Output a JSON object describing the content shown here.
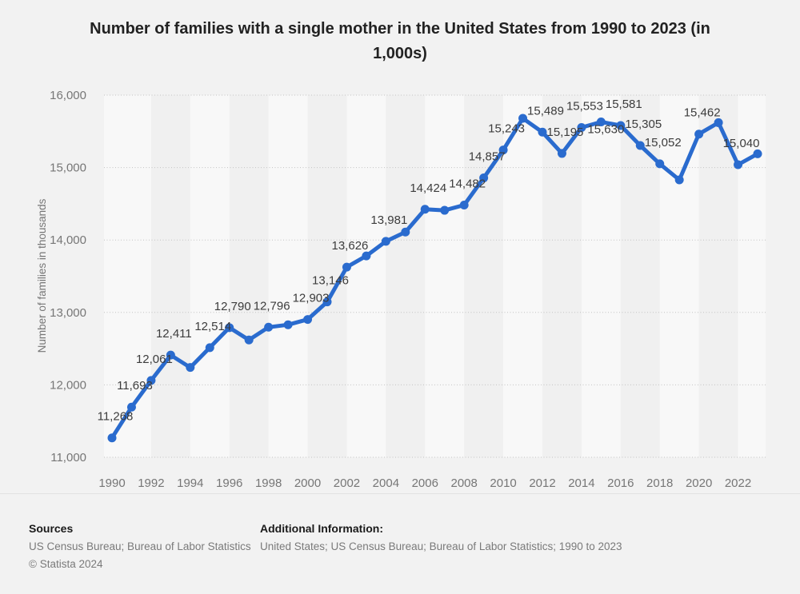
{
  "chart_data": {
    "type": "line",
    "title": "Number of families with a single mother in the United States from 1990 to 2023 (in 1,000s)",
    "xlabel": "",
    "ylabel": "Number of families in thousands",
    "ylim": [
      11000,
      16000
    ],
    "ytick_labels": [
      "11,000",
      "12,000",
      "13,000",
      "14,000",
      "15,000",
      "16,000"
    ],
    "xtick_labels": [
      "1990",
      "1992",
      "1994",
      "1996",
      "1998",
      "2000",
      "2002",
      "2004",
      "2006",
      "2008",
      "2010",
      "2012",
      "2014",
      "2016",
      "2018",
      "2020",
      "2022"
    ],
    "x": [
      1990,
      1991,
      1992,
      1993,
      1994,
      1995,
      1996,
      1997,
      1998,
      1999,
      2000,
      2001,
      2002,
      2003,
      2004,
      2005,
      2006,
      2007,
      2008,
      2009,
      2010,
      2011,
      2012,
      2013,
      2014,
      2015,
      2016,
      2017,
      2018,
      2019,
      2020,
      2021,
      2022,
      2023
    ],
    "values": [
      11268,
      11693,
      12061,
      12411,
      12240,
      12514,
      12790,
      12620,
      12796,
      12830,
      12903,
      13146,
      13626,
      13780,
      13981,
      14110,
      14424,
      14410,
      14482,
      14857,
      15243,
      15680,
      15489,
      15195,
      15553,
      15630,
      15581,
      15305,
      15052,
      14830,
      15462,
      15620,
      15040,
      15190
    ],
    "data_labels": [
      "11,268",
      "11,693",
      "12,061",
      "12,411",
      null,
      "12,514",
      "12,790",
      null,
      "12,796",
      null,
      "12,903",
      "13,146",
      "13,626",
      null,
      "13,981",
      null,
      "14,424",
      null,
      "14,482",
      "14,857",
      "15,243",
      null,
      "15,489",
      "15,195",
      "15,553",
      "15,630",
      "15,581",
      "15,305",
      "15,052",
      null,
      "15,462",
      null,
      "15,040",
      null
    ],
    "label_offsets": {
      "25": {
        "dx": 6,
        "dy": 14
      }
    },
    "grid": "dotted-horizontal",
    "legend": "none",
    "colors": {
      "line": "#2a6bce",
      "data_label": "#3c3c3c",
      "axis_text": "#767676",
      "title_text": "#222222",
      "background": "#f2f2f2",
      "band_light": "#f8f8f8",
      "band_dark": "#f0f0f0",
      "gridline": "#c2c2c2",
      "divider": "#e2e2e2"
    }
  },
  "footer": {
    "sources_heading": "Sources",
    "sources_text": "US Census Bureau; Bureau of Labor Statistics",
    "copyright": "© Statista 2024",
    "additional_heading": "Additional Information:",
    "additional_text": "United States; US Census Bureau; Bureau of Labor Statistics; 1990 to 2023"
  }
}
